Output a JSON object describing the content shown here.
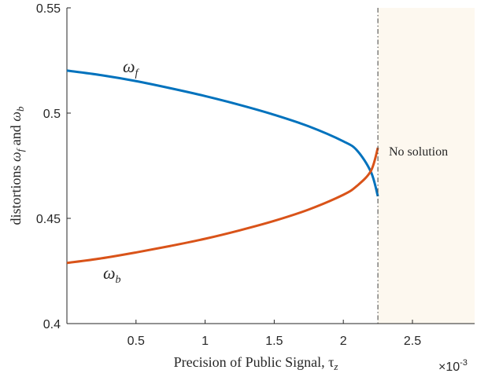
{
  "chart_data": {
    "type": "line",
    "xlabel": "Precision of Public Signal, τ",
    "xlabel_sub": "z",
    "ylabel_parts": [
      "distortions ",
      "ω",
      "f",
      " and ",
      "ω",
      "b"
    ],
    "x_multiplier_base": "×10",
    "x_multiplier_exp": "-3",
    "xlim": [
      0.0,
      2.95
    ],
    "ylim": [
      0.4,
      0.55
    ],
    "x_ticks": [
      0.5,
      1,
      1.5,
      2,
      2.5
    ],
    "x_tick_labels": [
      "0.5",
      "1",
      "1.5",
      "2",
      "2.5"
    ],
    "y_ticks": [
      0.4,
      0.45,
      0.5,
      0.55
    ],
    "y_tick_labels": [
      "0.4",
      "0.45",
      "0.5",
      "0.55"
    ],
    "grid": false,
    "vline_x": 2.25,
    "shaded_region": {
      "from": 2.25,
      "to": 2.95,
      "color": "#fdf8ef"
    },
    "annotation": "No solution",
    "series": [
      {
        "name": "ω",
        "name_sub": "f",
        "color": "#0072bd",
        "x": [
          0.0,
          0.25,
          0.5,
          0.75,
          1.0,
          1.25,
          1.5,
          1.75,
          2.0,
          2.1,
          2.2,
          2.25
        ],
        "y": [
          0.5202,
          0.518,
          0.5152,
          0.5118,
          0.5081,
          0.5039,
          0.4992,
          0.4937,
          0.4866,
          0.4822,
          0.472,
          0.4605
        ]
      },
      {
        "name": "ω",
        "name_sub": "b",
        "color": "#d95319",
        "x": [
          0.0,
          0.25,
          0.5,
          0.75,
          1.0,
          1.25,
          1.5,
          1.75,
          2.0,
          2.1,
          2.2,
          2.25
        ],
        "y": [
          0.4288,
          0.431,
          0.4338,
          0.4369,
          0.4403,
          0.4443,
          0.4488,
          0.4542,
          0.4612,
          0.4655,
          0.4726,
          0.4835
        ]
      }
    ]
  }
}
